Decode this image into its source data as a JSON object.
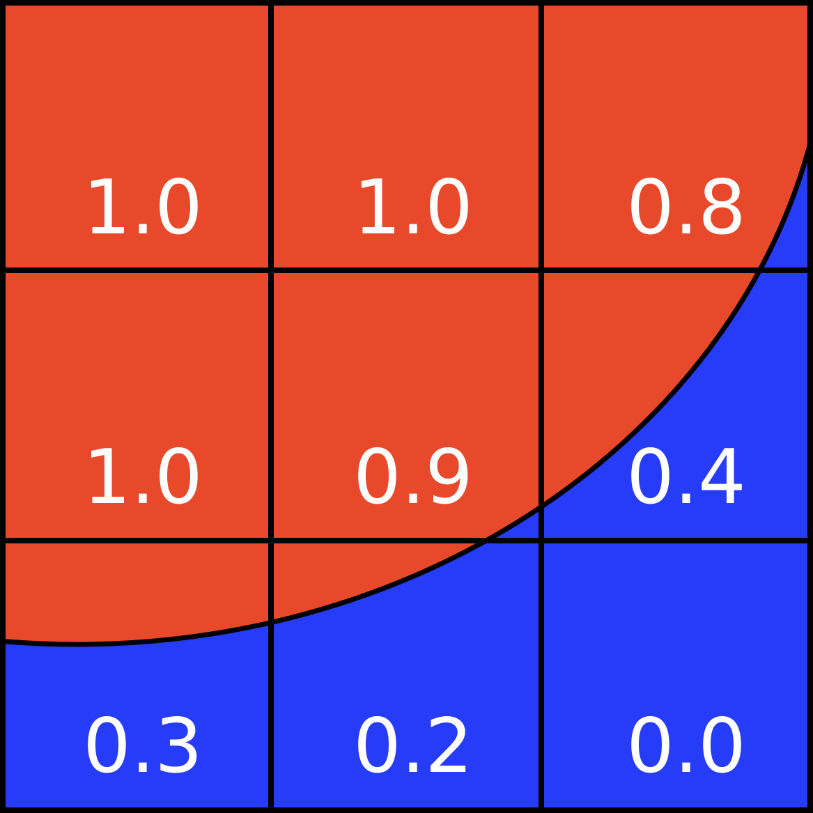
{
  "cells": [
    [
      "1.0",
      "1.0",
      "0.8"
    ],
    [
      "1.0",
      "0.9",
      "0.4"
    ],
    [
      "0.3",
      "0.2",
      "0.0"
    ]
  ]
}
